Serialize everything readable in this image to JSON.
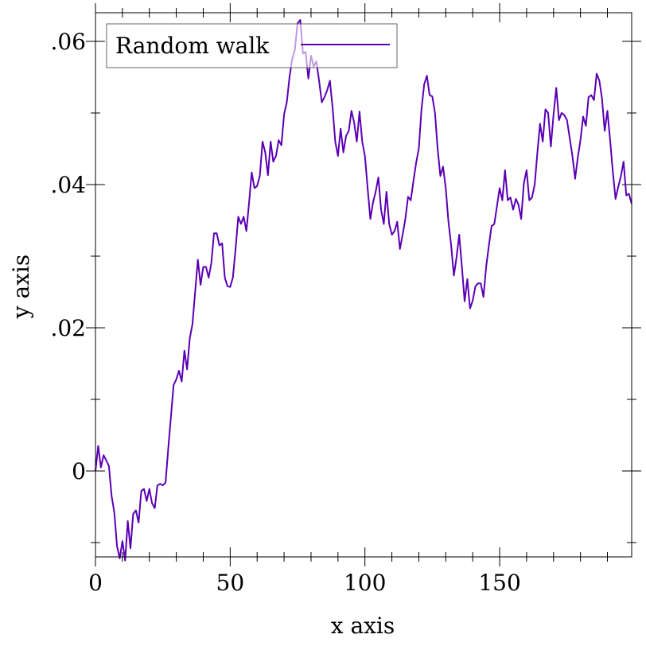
{
  "chart_data": {
    "type": "line",
    "title": "",
    "xlabel": "x axis",
    "ylabel": "y axis",
    "xlim": [
      0,
      199
    ],
    "ylim": [
      -0.012,
      0.064
    ],
    "xticks": [
      0,
      50,
      100,
      150
    ],
    "xtick_labels": [
      "0",
      "50",
      "100",
      "150"
    ],
    "yticks": [
      0,
      0.02,
      0.04,
      0.06
    ],
    "ytick_labels": [
      "0",
      ".02",
      ".04",
      ".06"
    ],
    "grid": false,
    "legend": {
      "position": "top-left",
      "entries": [
        "Random walk"
      ]
    },
    "colors": {
      "series": "#5a00b4",
      "axis": "#000000",
      "legend_border": "#666666"
    },
    "series": [
      {
        "name": "Random walk",
        "x": [
          0,
          1,
          2,
          3,
          4,
          5,
          6,
          7,
          8,
          9,
          10,
          11,
          12,
          13,
          14,
          15,
          16,
          17,
          18,
          19,
          20,
          21,
          22,
          23,
          24,
          25,
          26,
          27,
          28,
          29,
          30,
          31,
          32,
          33,
          34,
          35,
          36,
          37,
          38,
          39,
          40,
          41,
          42,
          43,
          44,
          45,
          46,
          47,
          48,
          49,
          50,
          51,
          52,
          53,
          54,
          55,
          56,
          57,
          58,
          59,
          60,
          61,
          62,
          63,
          64,
          65,
          66,
          67,
          68,
          69,
          70,
          71,
          72,
          73,
          74,
          75,
          76,
          77,
          78,
          79,
          80,
          81,
          82,
          83,
          84,
          85,
          86,
          87,
          88,
          89,
          90,
          91,
          92,
          93,
          94,
          95,
          96,
          97,
          98,
          99,
          100,
          101,
          102,
          103,
          104,
          105,
          106,
          107,
          108,
          109,
          110,
          111,
          112,
          113,
          114,
          115,
          116,
          117,
          118,
          119,
          120,
          121,
          122,
          123,
          124,
          125,
          126,
          127,
          128,
          129,
          130,
          131,
          132,
          133,
          134,
          135,
          136,
          137,
          138,
          139,
          140,
          141,
          142,
          143,
          144,
          145,
          146,
          147,
          148,
          149,
          150,
          151,
          152,
          153,
          154,
          155,
          156,
          157,
          158,
          159,
          160,
          161,
          162,
          163,
          164,
          165,
          166,
          167,
          168,
          169,
          170,
          171,
          172,
          173,
          174,
          175,
          176,
          177,
          178,
          179,
          180,
          181,
          182,
          183,
          184,
          185,
          186,
          187,
          188,
          189,
          190,
          191,
          192,
          193,
          194,
          195,
          196,
          197,
          198,
          199
        ],
        "y": [
          0.0,
          0.0035,
          0.0005,
          0.0022,
          0.0015,
          0.0007,
          -0.0035,
          -0.0058,
          -0.0105,
          -0.0122,
          -0.0098,
          -0.0125,
          -0.007,
          -0.0108,
          -0.006,
          -0.0055,
          -0.0072,
          -0.0028,
          -0.0025,
          -0.0042,
          -0.0025,
          -0.0045,
          -0.0052,
          -0.002,
          -0.0018,
          -0.002,
          -0.0016,
          0.003,
          0.0075,
          0.012,
          0.0128,
          0.014,
          0.0125,
          0.0168,
          0.0142,
          0.0185,
          0.0205,
          0.025,
          0.0295,
          0.026,
          0.0285,
          0.0285,
          0.027,
          0.029,
          0.0332,
          0.0332,
          0.0315,
          0.0318,
          0.027,
          0.0258,
          0.0257,
          0.027,
          0.031,
          0.0355,
          0.0345,
          0.0355,
          0.0335,
          0.0375,
          0.0417,
          0.0395,
          0.0398,
          0.0412,
          0.046,
          0.0445,
          0.0413,
          0.046,
          0.0432,
          0.044,
          0.0462,
          0.0455,
          0.0498,
          0.0515,
          0.055,
          0.0575,
          0.0588,
          0.0625,
          0.063,
          0.0583,
          0.0585,
          0.0548,
          0.058,
          0.0565,
          0.0572,
          0.0545,
          0.0515,
          0.0522,
          0.0532,
          0.0545,
          0.0507,
          0.046,
          0.044,
          0.0478,
          0.0445,
          0.0468,
          0.0475,
          0.0503,
          0.0487,
          0.046,
          0.0502,
          0.046,
          0.044,
          0.0395,
          0.0352,
          0.0375,
          0.039,
          0.041,
          0.0365,
          0.0345,
          0.039,
          0.0345,
          0.033,
          0.0335,
          0.0348,
          0.031,
          0.033,
          0.0352,
          0.0383,
          0.0378,
          0.0405,
          0.043,
          0.045,
          0.0505,
          0.054,
          0.0552,
          0.0525,
          0.0523,
          0.05,
          0.045,
          0.0412,
          0.0425,
          0.0395,
          0.0348,
          0.0315,
          0.0273,
          0.0298,
          0.033,
          0.0285,
          0.0237,
          0.0268,
          0.0227,
          0.0238,
          0.0258,
          0.0262,
          0.0262,
          0.0243,
          0.0285,
          0.0315,
          0.0342,
          0.0345,
          0.037,
          0.0395,
          0.0378,
          0.042,
          0.0378,
          0.0382,
          0.0365,
          0.038,
          0.0372,
          0.0352,
          0.0402,
          0.042,
          0.0378,
          0.0382,
          0.04,
          0.0445,
          0.0485,
          0.046,
          0.0505,
          0.05,
          0.0453,
          0.0498,
          0.0535,
          0.049,
          0.05,
          0.0497,
          0.049,
          0.0465,
          0.044,
          0.0408,
          0.0438,
          0.0462,
          0.0495,
          0.0482,
          0.0522,
          0.0525,
          0.0518,
          0.0555,
          0.0545,
          0.052,
          0.0475,
          0.0503,
          0.0462,
          0.0418,
          0.038,
          0.0397,
          0.0412,
          0.0432,
          0.0385,
          0.0387,
          0.0373
        ]
      }
    ]
  }
}
